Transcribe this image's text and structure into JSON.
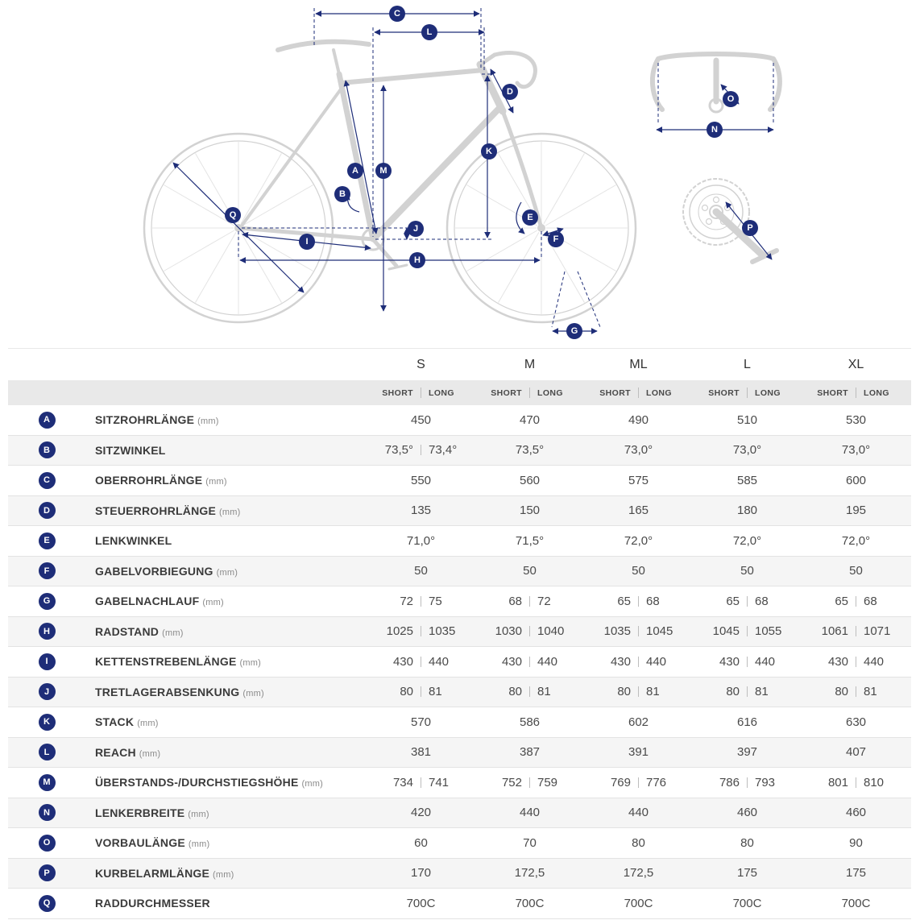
{
  "colors": {
    "accent": "#1e2d78"
  },
  "diagram": {
    "markers": {
      "A": "A",
      "B": "B",
      "C": "C",
      "D": "D",
      "E": "E",
      "F": "F",
      "G": "G",
      "H": "H",
      "I": "I",
      "J": "J",
      "K": "K",
      "L": "L",
      "M": "M",
      "N": "N",
      "O": "O",
      "P": "P",
      "Q": "Q"
    }
  },
  "table": {
    "sizes": [
      "S",
      "M",
      "ML",
      "L",
      "XL"
    ],
    "variant_labels": [
      "SHORT",
      "LONG"
    ],
    "rows": [
      {
        "marker": "A",
        "label": "SITZROHRLÄNGE",
        "unit": "(mm)",
        "values": [
          [
            "450"
          ],
          [
            "470"
          ],
          [
            "490"
          ],
          [
            "510"
          ],
          [
            "530"
          ]
        ]
      },
      {
        "marker": "B",
        "label": "SITZWINKEL",
        "unit": "",
        "values": [
          [
            "73,5°",
            "73,4°"
          ],
          [
            "73,5°"
          ],
          [
            "73,0°"
          ],
          [
            "73,0°"
          ],
          [
            "73,0°"
          ]
        ]
      },
      {
        "marker": "C",
        "label": "OBERROHRLÄNGE",
        "unit": "(mm)",
        "values": [
          [
            "550"
          ],
          [
            "560"
          ],
          [
            "575"
          ],
          [
            "585"
          ],
          [
            "600"
          ]
        ]
      },
      {
        "marker": "D",
        "label": "STEUERROHRLÄNGE",
        "unit": "(mm)",
        "values": [
          [
            "135"
          ],
          [
            "150"
          ],
          [
            "165"
          ],
          [
            "180"
          ],
          [
            "195"
          ]
        ]
      },
      {
        "marker": "E",
        "label": "LENKWINKEL",
        "unit": "",
        "values": [
          [
            "71,0°"
          ],
          [
            "71,5°"
          ],
          [
            "72,0°"
          ],
          [
            "72,0°"
          ],
          [
            "72,0°"
          ]
        ]
      },
      {
        "marker": "F",
        "label": "GABELVORBIEGUNG",
        "unit": "(mm)",
        "values": [
          [
            "50"
          ],
          [
            "50"
          ],
          [
            "50"
          ],
          [
            "50"
          ],
          [
            "50"
          ]
        ]
      },
      {
        "marker": "G",
        "label": "GABELNACHLAUF",
        "unit": "(mm)",
        "values": [
          [
            "72",
            "75"
          ],
          [
            "68",
            "72"
          ],
          [
            "65",
            "68"
          ],
          [
            "65",
            "68"
          ],
          [
            "65",
            "68"
          ]
        ]
      },
      {
        "marker": "H",
        "label": "RADSTAND",
        "unit": "(mm)",
        "values": [
          [
            "1025",
            "1035"
          ],
          [
            "1030",
            "1040"
          ],
          [
            "1035",
            "1045"
          ],
          [
            "1045",
            "1055"
          ],
          [
            "1061",
            "1071"
          ]
        ]
      },
      {
        "marker": "I",
        "label": "KETTENSTREBENLÄNGE",
        "unit": "(mm)",
        "values": [
          [
            "430",
            "440"
          ],
          [
            "430",
            "440"
          ],
          [
            "430",
            "440"
          ],
          [
            "430",
            "440"
          ],
          [
            "430",
            "440"
          ]
        ]
      },
      {
        "marker": "J",
        "label": "TRETLAGERABSENKUNG",
        "unit": "(mm)",
        "values": [
          [
            "80",
            "81"
          ],
          [
            "80",
            "81"
          ],
          [
            "80",
            "81"
          ],
          [
            "80",
            "81"
          ],
          [
            "80",
            "81"
          ]
        ]
      },
      {
        "marker": "K",
        "label": "STACK",
        "unit": "(mm)",
        "values": [
          [
            "570"
          ],
          [
            "586"
          ],
          [
            "602"
          ],
          [
            "616"
          ],
          [
            "630"
          ]
        ]
      },
      {
        "marker": "L",
        "label": "REACH",
        "unit": "(mm)",
        "values": [
          [
            "381"
          ],
          [
            "387"
          ],
          [
            "391"
          ],
          [
            "397"
          ],
          [
            "407"
          ]
        ]
      },
      {
        "marker": "M",
        "label": "ÜBERSTANDS-/DURCHSTIEGSHÖHE",
        "unit": "(mm)",
        "values": [
          [
            "734",
            "741"
          ],
          [
            "752",
            "759"
          ],
          [
            "769",
            "776"
          ],
          [
            "786",
            "793"
          ],
          [
            "801",
            "810"
          ]
        ]
      },
      {
        "marker": "N",
        "label": "LENKERBREITE",
        "unit": "(mm)",
        "values": [
          [
            "420"
          ],
          [
            "440"
          ],
          [
            "440"
          ],
          [
            "460"
          ],
          [
            "460"
          ]
        ]
      },
      {
        "marker": "O",
        "label": "VORBAULÄNGE",
        "unit": "(mm)",
        "values": [
          [
            "60"
          ],
          [
            "70"
          ],
          [
            "80"
          ],
          [
            "80"
          ],
          [
            "90"
          ]
        ]
      },
      {
        "marker": "P",
        "label": "KURBELARMLÄNGE",
        "unit": "(mm)",
        "values": [
          [
            "170"
          ],
          [
            "172,5"
          ],
          [
            "172,5"
          ],
          [
            "175"
          ],
          [
            "175"
          ]
        ]
      },
      {
        "marker": "Q",
        "label": "RADDURCHMESSER",
        "unit": "",
        "values": [
          [
            "700C"
          ],
          [
            "700C"
          ],
          [
            "700C"
          ],
          [
            "700C"
          ],
          [
            "700C"
          ]
        ]
      }
    ]
  }
}
